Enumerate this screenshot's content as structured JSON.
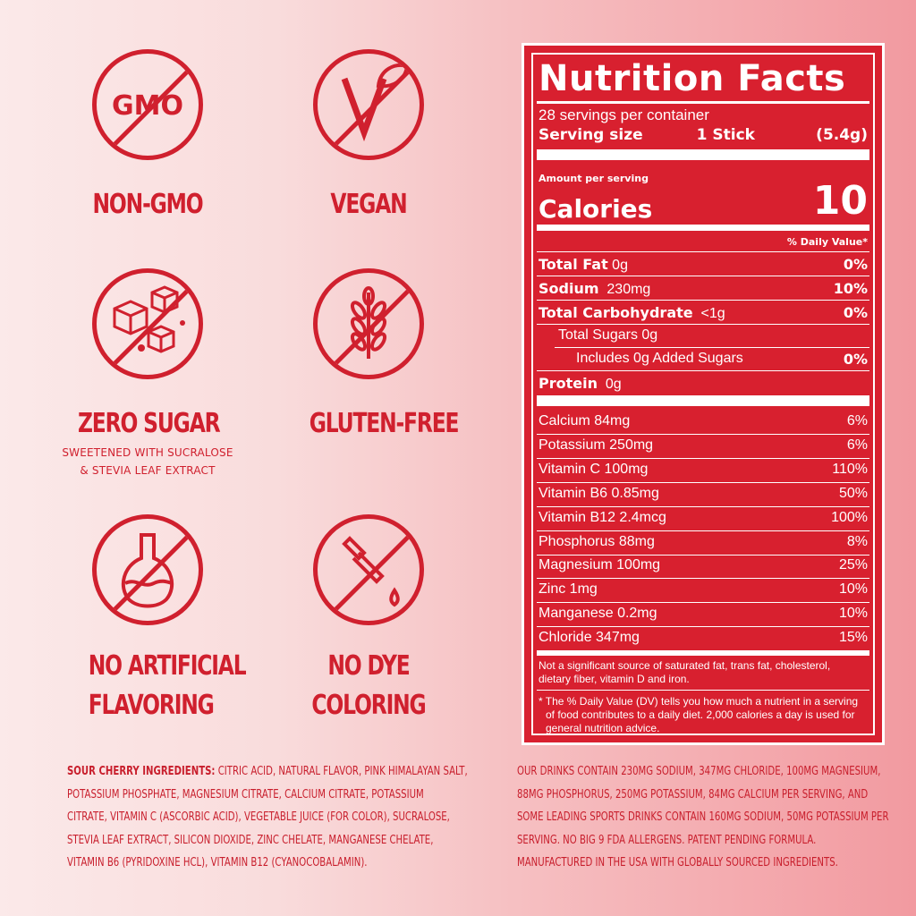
{
  "badges": {
    "non_gmo": {
      "icon_text": "GMO",
      "title": "NON-GMO"
    },
    "vegan": {
      "title": "VEGAN"
    },
    "zero_sugar": {
      "title": "ZERO SUGAR",
      "sub1": "SWEETENED WITH SUCRALOSE",
      "sub2": "& STEVIA LEAF EXTRACT"
    },
    "gluten_free": {
      "title": "GLUTEN-FREE"
    },
    "no_artificial": {
      "title1": "NO ARTIFICIAL",
      "title2": "FLAVORING"
    },
    "no_dye": {
      "title1": "NO DYE",
      "title2": "COLORING"
    }
  },
  "nutrition": {
    "title": "Nutrition Facts",
    "servings": "28 servings per container",
    "serving_size_label": "Serving size",
    "serving_size_value": "1 Stick",
    "serving_size_weight": "(5.4g)",
    "amount_per_serving": "Amount per serving",
    "calories_label": "Calories",
    "calories_value": "10",
    "dv_header": "% Daily Value*",
    "rows": [
      {
        "name": "Total Fat",
        "amount": "0g",
        "dv": "0%"
      },
      {
        "name": "Sodium",
        "amount": "230mg",
        "dv": "10%"
      },
      {
        "name": "Total Carbohydrate",
        "amount": "<1g",
        "dv": "0%"
      },
      {
        "name": "Total Sugars 0g",
        "amount": "",
        "dv": ""
      },
      {
        "name": "Includes 0g Added Sugars",
        "amount": "",
        "dv": "0%"
      },
      {
        "name": "Protein",
        "amount": "0g",
        "dv": ""
      }
    ],
    "minerals": [
      {
        "name": "Calcium 84mg",
        "dv": "6%"
      },
      {
        "name": "Potassium 250mg",
        "dv": "6%"
      },
      {
        "name": "Vitamin C 100mg",
        "dv": "110%"
      },
      {
        "name": "Vitamin B6 0.85mg",
        "dv": "50%"
      },
      {
        "name": "Vitamin B12 2.4mcg",
        "dv": "100%"
      },
      {
        "name": "Phosphorus 88mg",
        "dv": "8%"
      },
      {
        "name": "Magnesium 100mg",
        "dv": "25%"
      },
      {
        "name": "Zinc 1mg",
        "dv": "10%"
      },
      {
        "name": "Manganese 0.2mg",
        "dv": "10%"
      },
      {
        "name": "Chloride 347mg",
        "dv": "15%"
      }
    ],
    "note1_l1": "Not a significant source of saturated fat, trans fat, cholesterol,",
    "note1_l2": "dietary fiber, vitamin D and iron.",
    "note2_l1": "* The % Daily Value (DV) tells you how much a nutrient in a serving",
    "note2_l2": "of food contributes to a daily diet. 2,000 calories a day is used for",
    "note2_l3": "general nutrition advice."
  },
  "ingredients": {
    "heading": "SOUR CHERRY INGREDIENTS:",
    "l1": "CITRIC ACID, NATURAL FLAVOR, PINK HIMALAYAN SALT,",
    "l2": "POTASSIUM PHOSPHATE, MAGNESIUM CITRATE, CALCIUM CITRATE, POTASSIUM",
    "l3": "CITRATE, VITAMIN C (ASCORBIC ACID), VEGETABLE JUICE (FOR COLOR), SUCRALOSE,",
    "l4": "STEVIA LEAF EXTRACT, SILICON DIOXIDE, ZINC CHELATE, MANGANESE CHELATE,",
    "l5": "VITAMIN B6 (PYRIDOXINE HCL), VITAMIN B12 (CYANOCOBALAMIN)."
  },
  "claims": {
    "l1": "OUR DRINKS CONTAIN 230MG SODIUM, 347MG CHLORIDE,  100MG MAGNESIUM,",
    "l2": "88MG PHOSPHORUS, 250MG POTASSIUM, 84MG CALCIUM PER SERVING, AND",
    "l3": "SOME LEADING SPORTS DRINKS CONTAIN 160MG SODIUM, 50MG POTASSIUM PER",
    "l4": "SERVING. NO BIG 9 FDA ALLERGENS. PATENT PENDING FORMULA.",
    "l5": "MANUFACTURED IN THE USA WITH GLOBALLY SOURCED INGREDIENTS."
  }
}
